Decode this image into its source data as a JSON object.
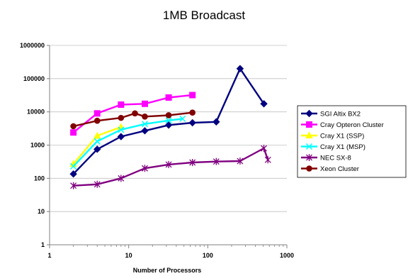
{
  "chart_data": {
    "type": "line",
    "title": "1MB Broadcast",
    "xlabel": "Number of Processors",
    "ylabel": "",
    "x_scale": "log",
    "y_scale": "log",
    "xlim": [
      1,
      1000
    ],
    "ylim": [
      1,
      1000000
    ],
    "x_ticks": [
      "1",
      "10",
      "100",
      "1000"
    ],
    "y_ticks": [
      "1",
      "10",
      "100",
      "1000",
      "10000",
      "100000",
      "1000000"
    ],
    "grid": "horizontal major gridlines",
    "legend_position": "right",
    "series": [
      {
        "name": "SGI Altix BX2",
        "color": "#000080",
        "marker": "diamond",
        "x": [
          2,
          4,
          8,
          16,
          32,
          64,
          128,
          256,
          512
        ],
        "y": [
          135,
          750,
          1800,
          2700,
          4000,
          4700,
          5000,
          200000,
          17500
        ]
      },
      {
        "name": "Cray Opteron Cluster",
        "color": "#ff00ff",
        "marker": "square",
        "x": [
          2,
          4,
          8,
          16,
          32,
          64
        ],
        "y": [
          2400,
          9000,
          16500,
          17500,
          27000,
          32000
        ]
      },
      {
        "name": "Cray X1 (SSP)",
        "color": "#ffff00",
        "marker": "triangle",
        "x": [
          2,
          4,
          8
        ],
        "y": [
          270,
          1900,
          3500
        ]
      },
      {
        "name": "Cray X1 (MSP)",
        "color": "#00ffff",
        "marker": "x",
        "x": [
          2,
          4,
          8,
          16,
          32,
          48
        ],
        "y": [
          230,
          1300,
          2900,
          4300,
          5500,
          6200
        ]
      },
      {
        "name": "NEC SX-8",
        "color": "#800080",
        "marker": "star",
        "x": [
          2,
          4,
          8,
          16,
          32,
          64,
          128,
          256,
          512,
          576
        ],
        "y": [
          60,
          66,
          100,
          200,
          260,
          300,
          320,
          330,
          800,
          360
        ]
      },
      {
        "name": "Xeon Cluster",
        "color": "#800000",
        "marker": "circle",
        "x": [
          2,
          4,
          8,
          12,
          16,
          32,
          64
        ],
        "y": [
          3700,
          5400,
          6600,
          9000,
          7200,
          7900,
          9500
        ]
      }
    ]
  }
}
